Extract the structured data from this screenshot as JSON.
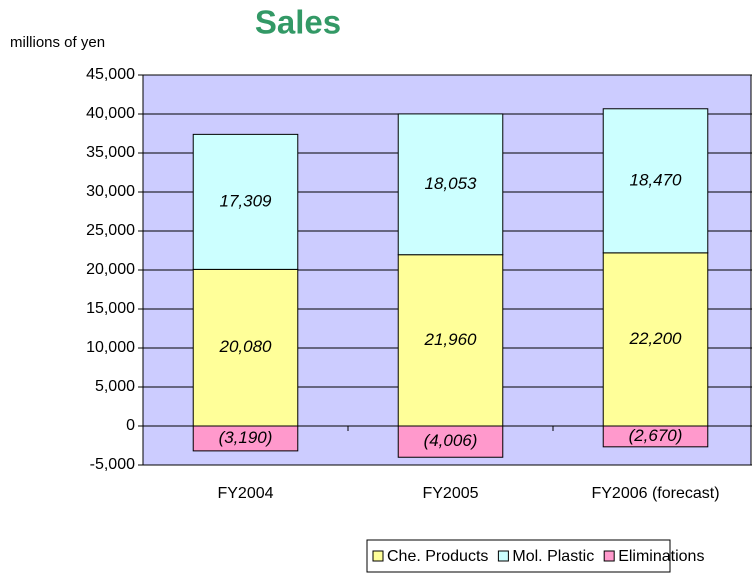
{
  "chart_data": {
    "type": "stacked_bar",
    "title": "Sales",
    "y_axis_label": "millions of yen",
    "categories": [
      "FY2004",
      "FY2005",
      "FY2006 (forecast)"
    ],
    "series": [
      {
        "name": "Che. Products",
        "color": "#ffff99",
        "values": [
          20080,
          21960,
          22200
        ]
      },
      {
        "name": "Mol. Plastic",
        "color": "#ccffff",
        "values": [
          17309,
          18053,
          18470
        ]
      },
      {
        "name": "Eliminations",
        "color": "#ff99cc",
        "values": [
          -3190,
          -4006,
          -2670
        ],
        "value_labels": [
          "(3,190)",
          "(4,006)",
          "(2,670)"
        ]
      }
    ],
    "ylim": [
      -5000,
      45000
    ],
    "yticks": [
      {
        "value": -5000,
        "label": "-5,000"
      },
      0,
      {
        "value": 5000,
        "label": "5,000"
      },
      {
        "value": 10000,
        "label": "10,000"
      },
      {
        "value": 15000,
        "label": "15,000"
      },
      {
        "value": 20000,
        "label": "20,000"
      },
      {
        "value": 25000,
        "label": "25,000"
      },
      {
        "value": 30000,
        "label": "30,000"
      },
      {
        "value": 35000,
        "label": "35,000"
      },
      {
        "value": 40000,
        "label": "40,000"
      },
      {
        "value": 45000,
        "label": "45,000"
      }
    ],
    "grid": true,
    "plot_background": "#ccccff",
    "title_color": "#339966",
    "legend": "bottom"
  }
}
